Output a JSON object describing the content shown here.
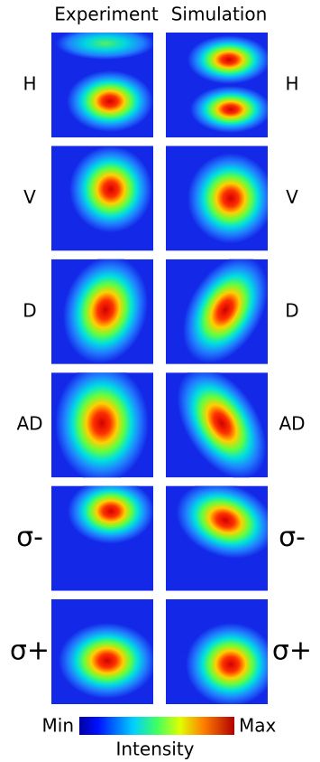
{
  "header": {
    "left": "Experiment",
    "right": "Simulation"
  },
  "rows": [
    {
      "label": "H"
    },
    {
      "label": "V"
    },
    {
      "label": "D"
    },
    {
      "label": "AD"
    },
    {
      "label": "σ-"
    },
    {
      "label": "σ+"
    }
  ],
  "colorbar": {
    "min": "Min",
    "max": "Max",
    "label": "Intensity"
  }
}
